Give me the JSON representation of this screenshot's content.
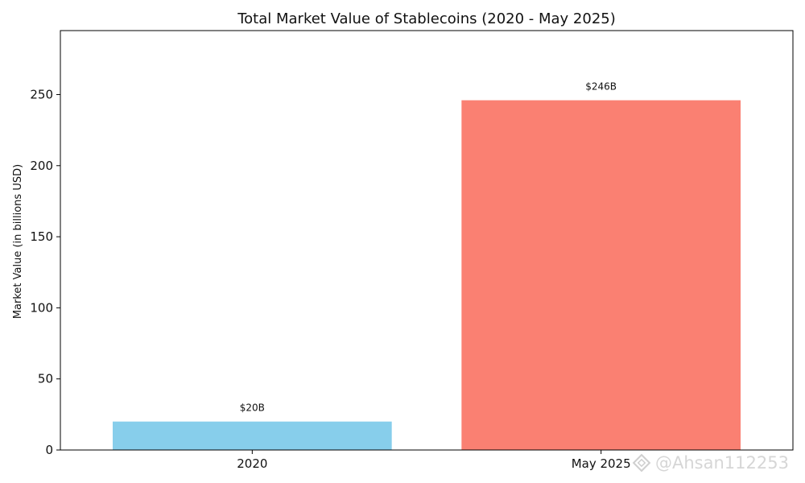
{
  "chart_data": {
    "type": "bar",
    "title": "Total Market Value of Stablecoins (2020 - May 2025)",
    "xlabel": "",
    "ylabel": "Market Value (in billions USD)",
    "categories": [
      "2020",
      "May 2025"
    ],
    "values": [
      20,
      246
    ],
    "data_labels": [
      "$20B",
      "$246B"
    ],
    "colors": [
      "#87ceeb",
      "#fa8072"
    ],
    "ylim": [
      0,
      295
    ],
    "yticks": [
      0,
      50,
      100,
      150,
      200,
      250
    ],
    "grid": false,
    "legend": "none"
  },
  "watermark": {
    "text": "@Ahsan112253",
    "icon": "diamond-logo-icon"
  }
}
